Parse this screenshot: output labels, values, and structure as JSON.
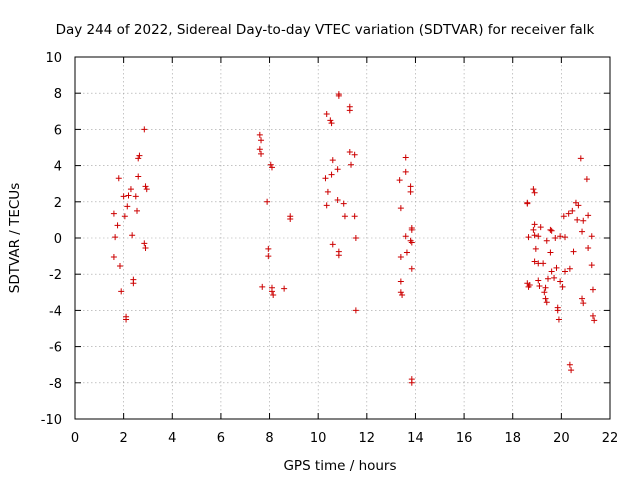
{
  "chart_data": {
    "type": "scatter",
    "title": "Day 244 of 2022, Sidereal Day-to-day VTEC variation (SDTVAR) for receiver falk",
    "xlabel": "GPS time / hours",
    "ylabel": "SDTVAR / TECUs",
    "xlim": [
      0,
      22
    ],
    "ylim": [
      -10,
      10
    ],
    "xticks": [
      0,
      2,
      4,
      6,
      8,
      10,
      12,
      14,
      16,
      18,
      20,
      22
    ],
    "yticks": [
      -10,
      -8,
      -6,
      -4,
      -2,
      0,
      2,
      4,
      6,
      8,
      10
    ],
    "grid": true,
    "marker": "plus",
    "color": "#cc0000",
    "points": [
      [
        1.6,
        1.35
      ],
      [
        1.65,
        0.05
      ],
      [
        1.6,
        -1.05
      ],
      [
        1.8,
        3.3
      ],
      [
        1.85,
        -1.55
      ],
      [
        1.9,
        -2.95
      ],
      [
        1.75,
        0.7
      ],
      [
        2.0,
        2.3
      ],
      [
        2.05,
        1.2
      ],
      [
        2.1,
        -4.35
      ],
      [
        2.1,
        -4.5
      ],
      [
        2.15,
        1.75
      ],
      [
        2.3,
        2.7
      ],
      [
        2.35,
        0.15
      ],
      [
        2.4,
        -2.3
      ],
      [
        2.4,
        -2.5
      ],
      [
        2.55,
        1.5
      ],
      [
        2.6,
        3.4
      ],
      [
        2.6,
        4.4
      ],
      [
        2.65,
        4.55
      ],
      [
        2.5,
        2.3
      ],
      [
        2.85,
        6.0
      ],
      [
        2.9,
        2.85
      ],
      [
        2.95,
        2.7
      ],
      [
        2.85,
        -0.3
      ],
      [
        2.9,
        -0.55
      ],
      [
        2.2,
        2.35
      ],
      [
        7.6,
        5.7
      ],
      [
        7.65,
        5.4
      ],
      [
        7.6,
        4.9
      ],
      [
        7.65,
        4.65
      ],
      [
        7.7,
        -2.7
      ],
      [
        7.9,
        2.0
      ],
      [
        7.95,
        -0.6
      ],
      [
        7.95,
        -1.0
      ],
      [
        8.05,
        4.05
      ],
      [
        8.1,
        3.9
      ],
      [
        8.1,
        -2.75
      ],
      [
        8.1,
        -2.95
      ],
      [
        8.15,
        -3.15
      ],
      [
        8.6,
        -2.8
      ],
      [
        8.85,
        1.05
      ],
      [
        8.85,
        1.2
      ],
      [
        10.35,
        6.85
      ],
      [
        10.5,
        6.5
      ],
      [
        10.55,
        6.35
      ],
      [
        10.3,
        3.3
      ],
      [
        10.4,
        2.55
      ],
      [
        10.35,
        1.8
      ],
      [
        10.6,
        4.3
      ],
      [
        10.55,
        3.5
      ],
      [
        10.6,
        -0.35
      ],
      [
        10.85,
        7.85
      ],
      [
        10.85,
        7.95
      ],
      [
        10.8,
        3.8
      ],
      [
        10.8,
        2.1
      ],
      [
        10.85,
        -0.75
      ],
      [
        10.85,
        -0.95
      ],
      [
        11.05,
        1.9
      ],
      [
        11.1,
        1.2
      ],
      [
        11.3,
        7.05
      ],
      [
        11.3,
        7.25
      ],
      [
        11.3,
        4.75
      ],
      [
        11.35,
        4.05
      ],
      [
        11.5,
        4.6
      ],
      [
        11.5,
        1.2
      ],
      [
        11.55,
        0.0
      ],
      [
        11.55,
        -4.0
      ],
      [
        13.35,
        3.2
      ],
      [
        13.4,
        1.65
      ],
      [
        13.4,
        -1.05
      ],
      [
        13.4,
        -2.4
      ],
      [
        13.4,
        -3.0
      ],
      [
        13.45,
        -3.15
      ],
      [
        13.6,
        4.45
      ],
      [
        13.6,
        3.65
      ],
      [
        13.6,
        0.1
      ],
      [
        13.65,
        -0.8
      ],
      [
        13.8,
        2.85
      ],
      [
        13.8,
        2.55
      ],
      [
        13.85,
        0.55
      ],
      [
        13.85,
        0.45
      ],
      [
        13.8,
        -0.15
      ],
      [
        13.85,
        -0.25
      ],
      [
        13.85,
        -1.7
      ],
      [
        13.85,
        -7.8
      ],
      [
        13.85,
        -8.0
      ],
      [
        18.6,
        1.95
      ],
      [
        18.6,
        1.9
      ],
      [
        18.65,
        0.05
      ],
      [
        18.6,
        -2.5
      ],
      [
        18.65,
        -2.7
      ],
      [
        18.7,
        -2.6
      ],
      [
        18.85,
        2.7
      ],
      [
        18.9,
        2.5
      ],
      [
        18.9,
        0.75
      ],
      [
        18.85,
        0.45
      ],
      [
        18.9,
        0.15
      ],
      [
        18.95,
        -0.6
      ],
      [
        18.9,
        -1.3
      ],
      [
        19.05,
        0.1
      ],
      [
        19.05,
        -1.4
      ],
      [
        19.05,
        -2.35
      ],
      [
        19.1,
        -2.65
      ],
      [
        19.15,
        0.6
      ],
      [
        19.25,
        -1.4
      ],
      [
        19.3,
        -3.0
      ],
      [
        19.35,
        -2.75
      ],
      [
        19.35,
        -3.35
      ],
      [
        19.4,
        -3.55
      ],
      [
        19.4,
        -0.15
      ],
      [
        19.45,
        -2.25
      ],
      [
        19.55,
        0.45
      ],
      [
        19.6,
        0.4
      ],
      [
        19.55,
        -0.8
      ],
      [
        19.6,
        -1.85
      ],
      [
        19.7,
        -2.2
      ],
      [
        19.75,
        0.0
      ],
      [
        19.8,
        -1.65
      ],
      [
        19.85,
        -3.85
      ],
      [
        19.85,
        -4.0
      ],
      [
        19.9,
        -4.5
      ],
      [
        19.95,
        -2.4
      ],
      [
        19.95,
        0.1
      ],
      [
        20.05,
        -2.7
      ],
      [
        20.1,
        1.2
      ],
      [
        20.15,
        0.05
      ],
      [
        20.15,
        -1.85
      ],
      [
        20.3,
        1.35
      ],
      [
        20.35,
        -7.0
      ],
      [
        20.4,
        -7.3
      ],
      [
        20.35,
        -1.7
      ],
      [
        20.45,
        1.5
      ],
      [
        20.5,
        -0.75
      ],
      [
        20.6,
        1.95
      ],
      [
        20.65,
        1.0
      ],
      [
        20.7,
        1.8
      ],
      [
        20.8,
        4.4
      ],
      [
        20.85,
        0.35
      ],
      [
        20.85,
        -3.35
      ],
      [
        20.9,
        -3.6
      ],
      [
        20.9,
        0.95
      ],
      [
        21.05,
        3.25
      ],
      [
        21.1,
        1.25
      ],
      [
        21.1,
        -0.55
      ],
      [
        21.25,
        0.1
      ],
      [
        21.25,
        -1.5
      ],
      [
        21.3,
        -2.85
      ],
      [
        21.3,
        -4.3
      ],
      [
        21.35,
        -4.55
      ]
    ]
  }
}
